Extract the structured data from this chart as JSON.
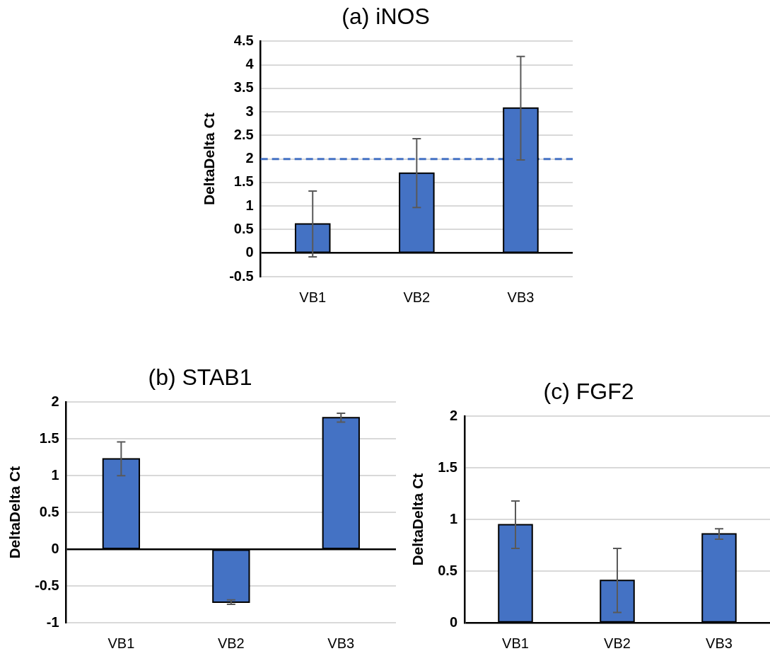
{
  "chart_data": [
    {
      "type": "bar",
      "title": "(a) iNOS",
      "ylabel": "DeltaDelta Ct",
      "categories": [
        "VB1",
        "VB2",
        "VB3"
      ],
      "values": [
        0.62,
        1.7,
        3.08
      ],
      "errors": [
        0.7,
        0.73,
        1.1
      ],
      "color": "#4472c4",
      "ylim": [
        -0.5,
        4.5
      ],
      "yticks": [
        -0.5,
        0,
        0.5,
        1,
        1.5,
        2,
        2.5,
        3,
        3.5,
        4,
        4.5
      ],
      "grid": "y",
      "ref_lines": [
        {
          "axis": "y",
          "value": 2,
          "color": "#4472c4",
          "line_style": "dashed"
        }
      ]
    },
    {
      "type": "bar",
      "title": "(b) STAB1",
      "ylabel": "DeltaDelta Ct",
      "categories": [
        "VB1",
        "VB2",
        "VB3"
      ],
      "values": [
        1.23,
        -0.72,
        1.79
      ],
      "errors": [
        0.23,
        0.03,
        0.06
      ],
      "color": "#4472c4",
      "ylim": [
        -1,
        2
      ],
      "yticks": [
        -1,
        -0.5,
        0,
        0.5,
        1,
        1.5,
        2
      ],
      "grid": "y"
    },
    {
      "type": "bar",
      "title": "(c) FGF2",
      "ylabel": "DeltaDelta Ct",
      "categories": [
        "VB1",
        "VB2",
        "VB3"
      ],
      "values": [
        0.95,
        0.41,
        0.86
      ],
      "errors": [
        0.23,
        0.31,
        0.05
      ],
      "color": "#4472c4",
      "ylim": [
        0,
        2
      ],
      "yticks": [
        0,
        0.5,
        1,
        1.5,
        2
      ],
      "grid": "y"
    }
  ]
}
